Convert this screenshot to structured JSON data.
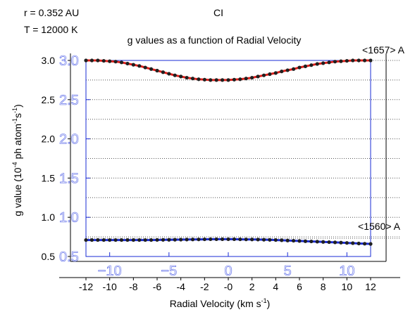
{
  "header": {
    "r_label": "r = 0.352 AU",
    "t_label": "T = 12000 K",
    "species": "CI"
  },
  "chart_data": {
    "type": "line",
    "title": "g values as a function of Radial Velocity",
    "xlabel_main": "Radial Velocity (km s",
    "xlabel_sup": "-1",
    "xlabel_tail": ")",
    "ylabel_main": "g value (10",
    "ylabel_sup1": "-4",
    "ylabel_mid": " ph atom",
    "ylabel_sup2": "-1",
    "ylabel_s": "s",
    "ylabel_sup3": "-1",
    "ylabel_tail": ")",
    "xlim": [
      -12,
      12
    ],
    "ylim": [
      0.5,
      3.0
    ],
    "xticks": [
      -12,
      -10,
      -8,
      -6,
      -4,
      -2,
      0,
      2,
      4,
      6,
      8,
      10,
      12
    ],
    "xtick_labels": [
      "-12",
      "-10",
      "-8",
      "-6",
      "-4",
      "-2",
      "-0",
      "2",
      "4",
      "6",
      "8",
      "10",
      "12"
    ],
    "yticks": [
      0.5,
      1.0,
      1.5,
      2.0,
      2.5,
      3.0
    ],
    "ytick_labels": [
      "0.5",
      "1.0",
      "1.5",
      "2.0",
      "2.5",
      "3.0"
    ],
    "inner_xticks": [
      -10,
      -5,
      0,
      5,
      10
    ],
    "inner_xtick_labels": [
      "−10",
      "−5",
      "0",
      "5",
      "10"
    ],
    "inner_yticks": [
      0.5,
      1.0,
      1.5,
      2.0,
      2.5,
      3.0
    ],
    "inner_ytick_labels": [
      "0.5",
      "1.0",
      "1.5",
      "2.0",
      "2.5",
      "3.0"
    ],
    "grid": true,
    "series": [
      {
        "name": "<1657> A",
        "color": "#e0201b",
        "marker_color": "#202020",
        "x": [
          -12,
          -11.5,
          -11,
          -10.5,
          -10,
          -9.5,
          -9,
          -8.5,
          -8,
          -7.5,
          -7,
          -6.5,
          -6,
          -5.5,
          -5,
          -4.5,
          -4,
          -3.5,
          -3,
          -2.5,
          -2,
          -1.5,
          -1,
          -0.5,
          0,
          0.5,
          1,
          1.5,
          2,
          2.5,
          3,
          3.5,
          4,
          4.5,
          5,
          5.5,
          6,
          6.5,
          7,
          7.5,
          8,
          8.5,
          9,
          9.5,
          10,
          10.5,
          11,
          11.5,
          12
        ],
        "y": [
          3.0,
          3.0,
          3.0,
          2.995,
          2.99,
          2.985,
          2.975,
          2.96,
          2.945,
          2.93,
          2.91,
          2.89,
          2.87,
          2.85,
          2.83,
          2.81,
          2.795,
          2.78,
          2.77,
          2.76,
          2.755,
          2.75,
          2.75,
          2.75,
          2.75,
          2.755,
          2.76,
          2.77,
          2.78,
          2.795,
          2.81,
          2.825,
          2.84,
          2.86,
          2.875,
          2.89,
          2.91,
          2.925,
          2.94,
          2.955,
          2.965,
          2.975,
          2.985,
          2.99,
          2.995,
          3.0,
          3.0,
          3.0,
          3.0
        ]
      },
      {
        "name": "<1560> A",
        "color": "#1a2bd6",
        "marker_color": "#202020",
        "x": [
          -12,
          -11.5,
          -11,
          -10.5,
          -10,
          -9.5,
          -9,
          -8.5,
          -8,
          -7.5,
          -7,
          -6.5,
          -6,
          -5.5,
          -5,
          -4.5,
          -4,
          -3.5,
          -3,
          -2.5,
          -2,
          -1.5,
          -1,
          -0.5,
          0,
          0.5,
          1,
          1.5,
          2,
          2.5,
          3,
          3.5,
          4,
          4.5,
          5,
          5.5,
          6,
          6.5,
          7,
          7.5,
          8,
          8.5,
          9,
          9.5,
          10,
          10.5,
          11,
          11.5,
          12
        ],
        "y": [
          0.71,
          0.71,
          0.71,
          0.71,
          0.71,
          0.71,
          0.71,
          0.71,
          0.71,
          0.71,
          0.71,
          0.71,
          0.711,
          0.712,
          0.713,
          0.714,
          0.715,
          0.716,
          0.717,
          0.718,
          0.719,
          0.72,
          0.72,
          0.72,
          0.72,
          0.72,
          0.719,
          0.718,
          0.717,
          0.716,
          0.714,
          0.712,
          0.71,
          0.707,
          0.704,
          0.701,
          0.698,
          0.695,
          0.692,
          0.689,
          0.686,
          0.683,
          0.68,
          0.677,
          0.673,
          0.67,
          0.666,
          0.663,
          0.66
        ]
      }
    ]
  }
}
